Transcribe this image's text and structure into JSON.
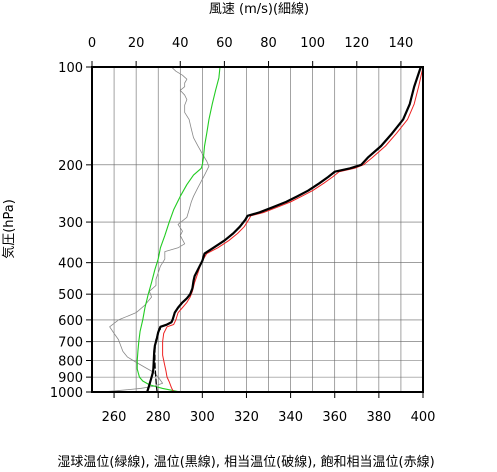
{
  "chart_data": {
    "type": "line",
    "title": "",
    "top_axis": {
      "label": "風速 (m/s)(細線)",
      "range": [
        0,
        150
      ],
      "ticks": [
        0,
        20,
        40,
        60,
        80,
        100,
        120,
        140
      ],
      "tick_labels": [
        "0",
        "20",
        "40",
        "60",
        "80",
        "100",
        "120",
        "140"
      ]
    },
    "bottom_axis": {
      "label": "湿球温位(緑線), 温位(黒線), 相当温位(破線), 飽和相当温位(赤線)",
      "range": [
        250,
        400
      ],
      "ticks": [
        260,
        280,
        300,
        320,
        340,
        360,
        380,
        400
      ],
      "tick_labels": [
        "260",
        "280",
        "300",
        "320",
        "340",
        "360",
        "380",
        "400"
      ]
    },
    "y_axis": {
      "label": "気圧(hPa)",
      "scale": "log",
      "range": [
        1000,
        100
      ],
      "ticks": [
        100,
        200,
        300,
        400,
        500,
        600,
        700,
        800,
        900,
        1000
      ],
      "tick_labels": [
        "100",
        "200",
        "300",
        "400",
        "500",
        "600",
        "700",
        "800",
        "900",
        "1000"
      ]
    },
    "grid": true,
    "series": [
      {
        "key": "wind",
        "axis": "top",
        "color": "#888888",
        "stroke_width": 0.8,
        "dash": "",
        "points": [
          [
            4,
            1000
          ],
          [
            12,
            990
          ],
          [
            22,
            975
          ],
          [
            28,
            960
          ],
          [
            32,
            940
          ],
          [
            31,
            920
          ],
          [
            30,
            900
          ],
          [
            28,
            870
          ],
          [
            24,
            840
          ],
          [
            20,
            810
          ],
          [
            16,
            780
          ],
          [
            14,
            750
          ],
          [
            13,
            720
          ],
          [
            12,
            690
          ],
          [
            10,
            660
          ],
          [
            8,
            630
          ],
          [
            12,
            600
          ],
          [
            20,
            570
          ],
          [
            24,
            540
          ],
          [
            27,
            510
          ],
          [
            26,
            490
          ],
          [
            29,
            470
          ],
          [
            29,
            450
          ],
          [
            30,
            430
          ],
          [
            31,
            410
          ],
          [
            33,
            390
          ],
          [
            33,
            370
          ],
          [
            39,
            360
          ],
          [
            42,
            350
          ],
          [
            40,
            330
          ],
          [
            41,
            320
          ],
          [
            39,
            305
          ],
          [
            43,
            290
          ],
          [
            44,
            275
          ],
          [
            45,
            260
          ],
          [
            46,
            250
          ],
          [
            48,
            235
          ],
          [
            51,
            215
          ],
          [
            53,
            202
          ],
          [
            52,
            195
          ],
          [
            50,
            185
          ],
          [
            48,
            175
          ],
          [
            46,
            165
          ],
          [
            45,
            155
          ],
          [
            44,
            145
          ],
          [
            42,
            138
          ],
          [
            42,
            131
          ],
          [
            43,
            126
          ],
          [
            42,
            122
          ],
          [
            40,
            118
          ],
          [
            42,
            115
          ],
          [
            42,
            112
          ],
          [
            43,
            109
          ],
          [
            41,
            106
          ],
          [
            38,
            103
          ],
          [
            36,
            100
          ]
        ]
      },
      {
        "key": "wet_bulb_potential_temperature",
        "axis": "bottom",
        "color": "#22cc22",
        "stroke_width": 1.1,
        "dash": "",
        "points": [
          [
            290,
            1000
          ],
          [
            282,
            975
          ],
          [
            276,
            950
          ],
          [
            273,
            925
          ],
          [
            271.5,
            900
          ],
          [
            271,
            875
          ],
          [
            270.5,
            850
          ],
          [
            270.5,
            800
          ],
          [
            270.8,
            750
          ],
          [
            271.2,
            700
          ],
          [
            271.8,
            650
          ],
          [
            273,
            600
          ],
          [
            274,
            550
          ],
          [
            275.5,
            500
          ],
          [
            277,
            460
          ],
          [
            278.5,
            420
          ],
          [
            280,
            390
          ],
          [
            281,
            360
          ],
          [
            283,
            330
          ],
          [
            285,
            300
          ],
          [
            287,
            275
          ],
          [
            290,
            250
          ],
          [
            293,
            230
          ],
          [
            296,
            215
          ],
          [
            299.5,
            205
          ],
          [
            300,
            200
          ],
          [
            300.5,
            190
          ],
          [
            301,
            175
          ],
          [
            302,
            160
          ],
          [
            303,
            145
          ],
          [
            304.5,
            130
          ],
          [
            306,
            118
          ],
          [
            307.5,
            108
          ],
          [
            308,
            100
          ]
        ]
      },
      {
        "key": "saturated_equivalent_potential_temperature",
        "axis": "bottom",
        "color": "#ee2222",
        "stroke_width": 1.0,
        "dash": "",
        "points": [
          [
            287,
            1000
          ],
          [
            286,
            970
          ],
          [
            285,
            930
          ],
          [
            284,
            900
          ],
          [
            283.5,
            860
          ],
          [
            283,
            830
          ],
          [
            282.5,
            800
          ],
          [
            282,
            770
          ],
          [
            282,
            740
          ],
          [
            282,
            700
          ],
          [
            282.5,
            660
          ],
          [
            284,
            630
          ],
          [
            287,
            620
          ],
          [
            288,
            600
          ],
          [
            289,
            570
          ],
          [
            291,
            550
          ],
          [
            293,
            530
          ],
          [
            294.5,
            510
          ],
          [
            295.5,
            490
          ],
          [
            296.5,
            460
          ],
          [
            298,
            430
          ],
          [
            299.5,
            400
          ],
          [
            302,
            375
          ],
          [
            307,
            360
          ],
          [
            312,
            342
          ],
          [
            316,
            325
          ],
          [
            319,
            310
          ],
          [
            321,
            295
          ],
          [
            322,
            287
          ],
          [
            328,
            280
          ],
          [
            334,
            270
          ],
          [
            340,
            260
          ],
          [
            345,
            250
          ],
          [
            350,
            240
          ],
          [
            355,
            228
          ],
          [
            359,
            218
          ],
          [
            362,
            210
          ],
          [
            369,
            205
          ],
          [
            373,
            200
          ],
          [
            377,
            190
          ],
          [
            383,
            175
          ],
          [
            388,
            160
          ],
          [
            393,
            145
          ],
          [
            396,
            130
          ],
          [
            398,
            115
          ],
          [
            400,
            100
          ]
        ]
      },
      {
        "key": "potential_temperature",
        "axis": "bottom",
        "color": "#000000",
        "stroke_width": 2.2,
        "dash": "",
        "points": [
          [
            275,
            1000
          ],
          [
            275.5,
            975
          ],
          [
            276,
            950
          ],
          [
            276.5,
            925
          ],
          [
            277,
            900
          ],
          [
            277.5,
            875
          ],
          [
            277.8,
            850
          ],
          [
            278,
            800
          ],
          [
            278.2,
            750
          ],
          [
            278.5,
            720
          ],
          [
            279,
            700
          ],
          [
            279.5,
            680
          ],
          [
            280,
            655
          ],
          [
            281,
            630
          ],
          [
            284,
            620
          ],
          [
            286,
            610
          ],
          [
            286.5,
            600
          ],
          [
            287.5,
            570
          ],
          [
            289,
            550
          ],
          [
            291,
            530
          ],
          [
            293,
            515
          ],
          [
            294.5,
            500
          ],
          [
            295.5,
            480
          ],
          [
            296,
            455
          ],
          [
            296.5,
            440
          ],
          [
            298,
            420
          ],
          [
            300,
            395
          ],
          [
            301,
            375
          ],
          [
            305,
            360
          ],
          [
            310,
            342
          ],
          [
            314,
            325
          ],
          [
            317,
            310
          ],
          [
            319.5,
            295
          ],
          [
            320.5,
            287
          ],
          [
            326,
            280
          ],
          [
            332,
            270
          ],
          [
            338,
            260
          ],
          [
            343,
            250
          ],
          [
            348,
            240
          ],
          [
            353,
            228
          ],
          [
            357,
            218
          ],
          [
            360,
            210
          ],
          [
            367,
            205
          ],
          [
            372,
            200
          ],
          [
            375,
            190
          ],
          [
            381,
            175
          ],
          [
            386,
            160
          ],
          [
            391,
            145
          ],
          [
            394,
            130
          ],
          [
            396,
            115
          ],
          [
            399,
            100
          ]
        ]
      },
      {
        "key": "equivalent_potential_temperature",
        "axis": "bottom",
        "color": "#000000",
        "stroke_width": 1.3,
        "dash": "5,3",
        "points": [
          [
            279.5,
            1000
          ],
          [
            279.2,
            960
          ],
          [
            279,
            920
          ],
          [
            278.8,
            880
          ],
          [
            278.6,
            840
          ],
          [
            278.5,
            800
          ],
          [
            278.5,
            760
          ],
          [
            278.6,
            720
          ],
          [
            279,
            690
          ],
          [
            279.8,
            660
          ],
          [
            281,
            640
          ]
        ]
      }
    ]
  }
}
